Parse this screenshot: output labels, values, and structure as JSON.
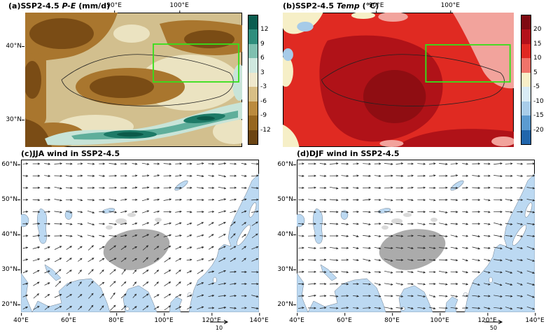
{
  "colors": {
    "ocean": "#bcd9f2",
    "plateau": "#ababab",
    "land": "#ffffff",
    "highlight_box": "#35e01a"
  },
  "panels": {
    "a": {
      "title_prefix": "(a)SSP2-4.5 ",
      "title_var": "P-E",
      "title_units": " (mm/d)",
      "top_ticks": [
        {
          "label": "90°E",
          "pos": 41
        },
        {
          "label": "100°E",
          "pos": 71
        }
      ],
      "left_ticks": [
        {
          "label": "40°N",
          "pos": 25
        },
        {
          "label": "30°N",
          "pos": 79.5
        }
      ],
      "colorbar": {
        "colors": [
          "#0b5d50",
          "#2f8e7d",
          "#7fc0b0",
          "#cfe8df",
          "#efe8cd",
          "#d8bf86",
          "#bb8b3e",
          "#96661f",
          "#6b4413"
        ],
        "ticks": [
          "12",
          "9",
          "6",
          "3",
          "-3",
          "-6",
          "-9",
          "-12"
        ]
      },
      "box_color": "#35e01a"
    },
    "b": {
      "title_prefix": "(b)SSP2-4.5 ",
      "title_var": "Temp",
      "title_units": " (°C)",
      "top_ticks": [
        {
          "label": "90°E",
          "pos": 40.5
        },
        {
          "label": "100°E",
          "pos": 72.5
        }
      ],
      "colorbar": {
        "colors": [
          "#7f0a12",
          "#b3101b",
          "#e02823",
          "#f0736a",
          "#f8efc8",
          "#d9ecf6",
          "#a9cde9",
          "#5b9bd0",
          "#2166ac"
        ],
        "ticks": [
          "20",
          "15",
          "10",
          "5",
          "-5",
          "-10",
          "-15",
          "-20"
        ]
      },
      "box_color": "#35e01a"
    },
    "c": {
      "title": "(c)JJA wind in SSP2-4.5",
      "x_ticks": [
        {
          "label": "40°E",
          "pos": 0
        },
        {
          "label": "60°E",
          "pos": 20
        },
        {
          "label": "80°E",
          "pos": 40
        },
        {
          "label": "100°E",
          "pos": 60
        },
        {
          "label": "120°E",
          "pos": 80
        },
        {
          "label": "140°E",
          "pos": 100
        }
      ],
      "y_ticks": [
        {
          "label": "60°N",
          "pos": 3
        },
        {
          "label": "50°N",
          "pos": 26
        },
        {
          "label": "40°N",
          "pos": 49
        },
        {
          "label": "30°N",
          "pos": 72
        },
        {
          "label": "20°N",
          "pos": 95
        }
      ],
      "ref_label": "10",
      "quiver": {
        "cols": 22,
        "rows": 13,
        "len": 9,
        "angles": [
          [
            2,
            0,
            -3,
            0,
            4,
            6,
            3,
            0,
            -4,
            0,
            3,
            5
          ],
          [
            0,
            3,
            6,
            3,
            0,
            -5,
            -8,
            -3,
            3,
            8,
            4,
            0
          ],
          [
            -3,
            0,
            8,
            12,
            5,
            -8,
            -12,
            -6,
            2,
            -10,
            -15,
            -8
          ],
          [
            -6,
            -3,
            5,
            15,
            8,
            -15,
            -25,
            -15,
            -20,
            -30,
            -40,
            -30
          ],
          [
            -12,
            -20,
            -30,
            -38,
            -30,
            -35,
            -40,
            -28,
            -15,
            -25,
            -35,
            -25
          ],
          [
            -18,
            -28,
            -40,
            -48,
            -42,
            -48,
            -40,
            -35,
            -28,
            -15,
            -5,
            5
          ],
          [
            -25,
            -35,
            -30,
            -45,
            -50,
            -42,
            -35,
            -30,
            -20,
            -8,
            0,
            8
          ]
        ]
      }
    },
    "d": {
      "title": "(d)DJF wind in SSP2-4.5",
      "x_ticks": [
        {
          "label": "40°E",
          "pos": 0
        },
        {
          "label": "60°E",
          "pos": 20
        },
        {
          "label": "80°E",
          "pos": 40
        },
        {
          "label": "100°E",
          "pos": 60
        },
        {
          "label": "120°E",
          "pos": 80
        },
        {
          "label": "140°E",
          "pos": 100
        }
      ],
      "y_ticks": [
        {
          "label": "60°N",
          "pos": 3
        },
        {
          "label": "50°N",
          "pos": 26
        },
        {
          "label": "40°N",
          "pos": 49
        },
        {
          "label": "30°N",
          "pos": 72
        },
        {
          "label": "20°N",
          "pos": 95
        }
      ],
      "ref_label": "50",
      "quiver": {
        "cols": 22,
        "rows": 13,
        "len": 10,
        "angles": [
          [
            3,
            0,
            -3,
            0,
            3,
            0,
            -3,
            0,
            3,
            0,
            -3,
            0
          ],
          [
            0,
            2,
            4,
            2,
            0,
            -2,
            -4,
            -2,
            0,
            2,
            4,
            2
          ],
          [
            2,
            4,
            2,
            0,
            2,
            4,
            6,
            4,
            2,
            4,
            6,
            8
          ],
          [
            0,
            2,
            6,
            8,
            4,
            2,
            6,
            8,
            6,
            8,
            10,
            12
          ],
          [
            -2,
            0,
            4,
            8,
            10,
            6,
            4,
            8,
            12,
            10,
            14,
            16
          ],
          [
            0,
            -2,
            2,
            6,
            10,
            8,
            4,
            6,
            10,
            14,
            18,
            20
          ],
          [
            -5,
            -3,
            0,
            3,
            6,
            8,
            10,
            6,
            4,
            8,
            12,
            15
          ]
        ]
      }
    }
  },
  "chart_data": [
    {
      "type": "heatmap",
      "panel": "a",
      "title": "(a)SSP2-4.5 P-E (mm/d)",
      "variable": "P-E (precipitation minus evaporation)",
      "units": "mm/d",
      "x_tick_labels": [
        "90°E",
        "100°E"
      ],
      "y_tick_labels": [
        "40°N",
        "30°N"
      ],
      "colorbar": {
        "tick_values": [
          12,
          9,
          6,
          3,
          -3,
          -6,
          -9,
          -12
        ],
        "colors": [
          "#0b5d50",
          "#2f8e7d",
          "#7fc0b0",
          "#cfe8df",
          "#efe8cd",
          "#d8bf86",
          "#bb8b3e",
          "#96661f",
          "#6b4413"
        ]
      },
      "legend_position": "right",
      "highlight_box": {
        "color": "green",
        "approx_lon": "≈88–104°E",
        "approx_lat": "≈36–42°N"
      },
      "regions": [
        {
          "area": "most of interior domain (Central Asia, Tarim, Gobi)",
          "value": "-3 to -9 mm/d (tan/brown)"
        },
        {
          "area": "cores in NW, N-central and W edge",
          "value": "-9 to below -12 mm/d (dark brown)"
        },
        {
          "area": "band along Himalayas / southern Tibetan Plateau rim",
          "value": "+3 to above +12 mm/d (teal/green)"
        },
        {
          "area": "patches east-central and south",
          "value": "-3 to +3 mm/d (pale)"
        }
      ]
    },
    {
      "type": "heatmap",
      "panel": "b",
      "title": "(b)SSP2-4.5 Temp (°C)",
      "variable": "Temp (surface temperature)",
      "units": "°C",
      "x_tick_labels": [
        "90°E",
        "100°E"
      ],
      "colorbar": {
        "tick_values": [
          20,
          15,
          10,
          5,
          -5,
          -10,
          -15,
          -20
        ],
        "colors": [
          "#7f0a12",
          "#b3101b",
          "#e02823",
          "#f0736a",
          "#f8efc8",
          "#d9ecf6",
          "#a9cde9",
          "#5b9bd0",
          "#2166ac"
        ]
      },
      "legend_position": "right",
      "highlight_box": {
        "color": "green",
        "approx_lon": "≈88–104°E",
        "approx_lat": "≈36–42°N"
      },
      "regions": [
        {
          "area": "most of domain",
          "value": "10 to 20 °C (red)"
        },
        {
          "area": "central/western Tibetan Plateau core",
          "value": "above 20 °C (dark red)"
        },
        {
          "area": "northeast and east near the green box",
          "value": "5 to 10 °C (pink)"
        },
        {
          "area": "small northwest patches",
          "value": "-5 to 5 °C (pale yellow)"
        },
        {
          "area": "small northwest spots",
          "value": "-10 to -5 °C (light blue)"
        }
      ]
    },
    {
      "type": "quiver",
      "panel": "c",
      "title": "(c)JJA wind in SSP2-4.5",
      "x_tick_labels": [
        "40°E",
        "60°E",
        "80°E",
        "100°E",
        "120°E",
        "140°E"
      ],
      "y_tick_labels": [
        "60°N",
        "50°N",
        "40°N",
        "30°N",
        "20°N"
      ],
      "reference_vector_label": "10",
      "flow_summary": "Westerlies across mid-latitudes north of 40°N; strong southwesterly summer-monsoon flow over the Arabian Sea, India and the Bay of Bengal turning to southerlies over East Asia; flow splits around the grey Tibetan Plateau; light blue denotes ocean and lakes."
    },
    {
      "type": "quiver",
      "panel": "d",
      "title": "(d)DJF wind in SSP2-4.5",
      "x_tick_labels": [
        "40°E",
        "60°E",
        "80°E",
        "100°E",
        "120°E",
        "140°E"
      ],
      "y_tick_labels": [
        "60°N",
        "50°N",
        "40°N",
        "30°N",
        "20°N"
      ],
      "reference_vector_label": "50",
      "flow_summary": "Strong, nearly zonal westerlies across the whole domain with the subtropical jet south of the Tibetan Plateau; weak meridional flow compared with JJA."
    }
  ]
}
